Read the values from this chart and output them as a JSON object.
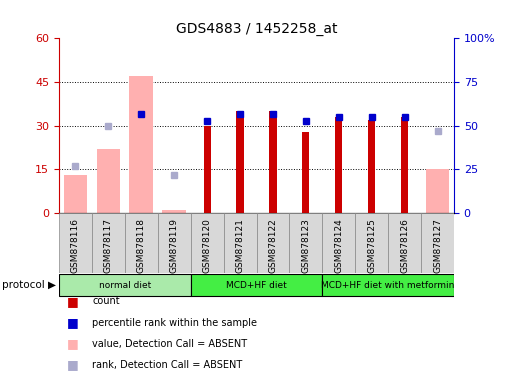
{
  "title": "GDS4883 / 1452258_at",
  "samples": [
    "GSM878116",
    "GSM878117",
    "GSM878118",
    "GSM878119",
    "GSM878120",
    "GSM878121",
    "GSM878122",
    "GSM878123",
    "GSM878124",
    "GSM878125",
    "GSM878126",
    "GSM878127"
  ],
  "count_values": [
    0,
    0,
    0,
    0,
    30,
    35,
    35,
    28,
    33,
    32,
    33,
    0
  ],
  "percentile_values": [
    0,
    0,
    57,
    0,
    53,
    57,
    57,
    53,
    55,
    55,
    55,
    0
  ],
  "absent_value": [
    13,
    22,
    47,
    1,
    0,
    0,
    0,
    0,
    0,
    0,
    0,
    15
  ],
  "absent_rank": [
    27,
    50,
    0,
    22,
    0,
    0,
    0,
    0,
    0,
    0,
    0,
    47
  ],
  "protocols": [
    {
      "label": "normal diet",
      "start": 0,
      "end": 4,
      "color": "#aaeaaa"
    },
    {
      "label": "MCD+HF diet",
      "start": 4,
      "end": 8,
      "color": "#44ee44"
    },
    {
      "label": "MCD+HF diet with metformin",
      "start": 8,
      "end": 12,
      "color": "#44ee44"
    }
  ],
  "ylim_left": [
    0,
    60
  ],
  "ylim_right": [
    0,
    100
  ],
  "yticks_left": [
    0,
    15,
    30,
    45,
    60
  ],
  "yticks_right": [
    0,
    25,
    50,
    75,
    100
  ],
  "count_color": "#cc0000",
  "pct_color": "#0000cc",
  "absent_val_color": "#ffb0b0",
  "absent_rank_color": "#aaaacc",
  "bg_color": "#ffffff",
  "legend_items": [
    {
      "label": "count",
      "color": "#cc0000"
    },
    {
      "label": "percentile rank within the sample",
      "color": "#0000cc"
    },
    {
      "label": "value, Detection Call = ABSENT",
      "color": "#ffb0b0"
    },
    {
      "label": "rank, Detection Call = ABSENT",
      "color": "#aaaacc"
    }
  ]
}
